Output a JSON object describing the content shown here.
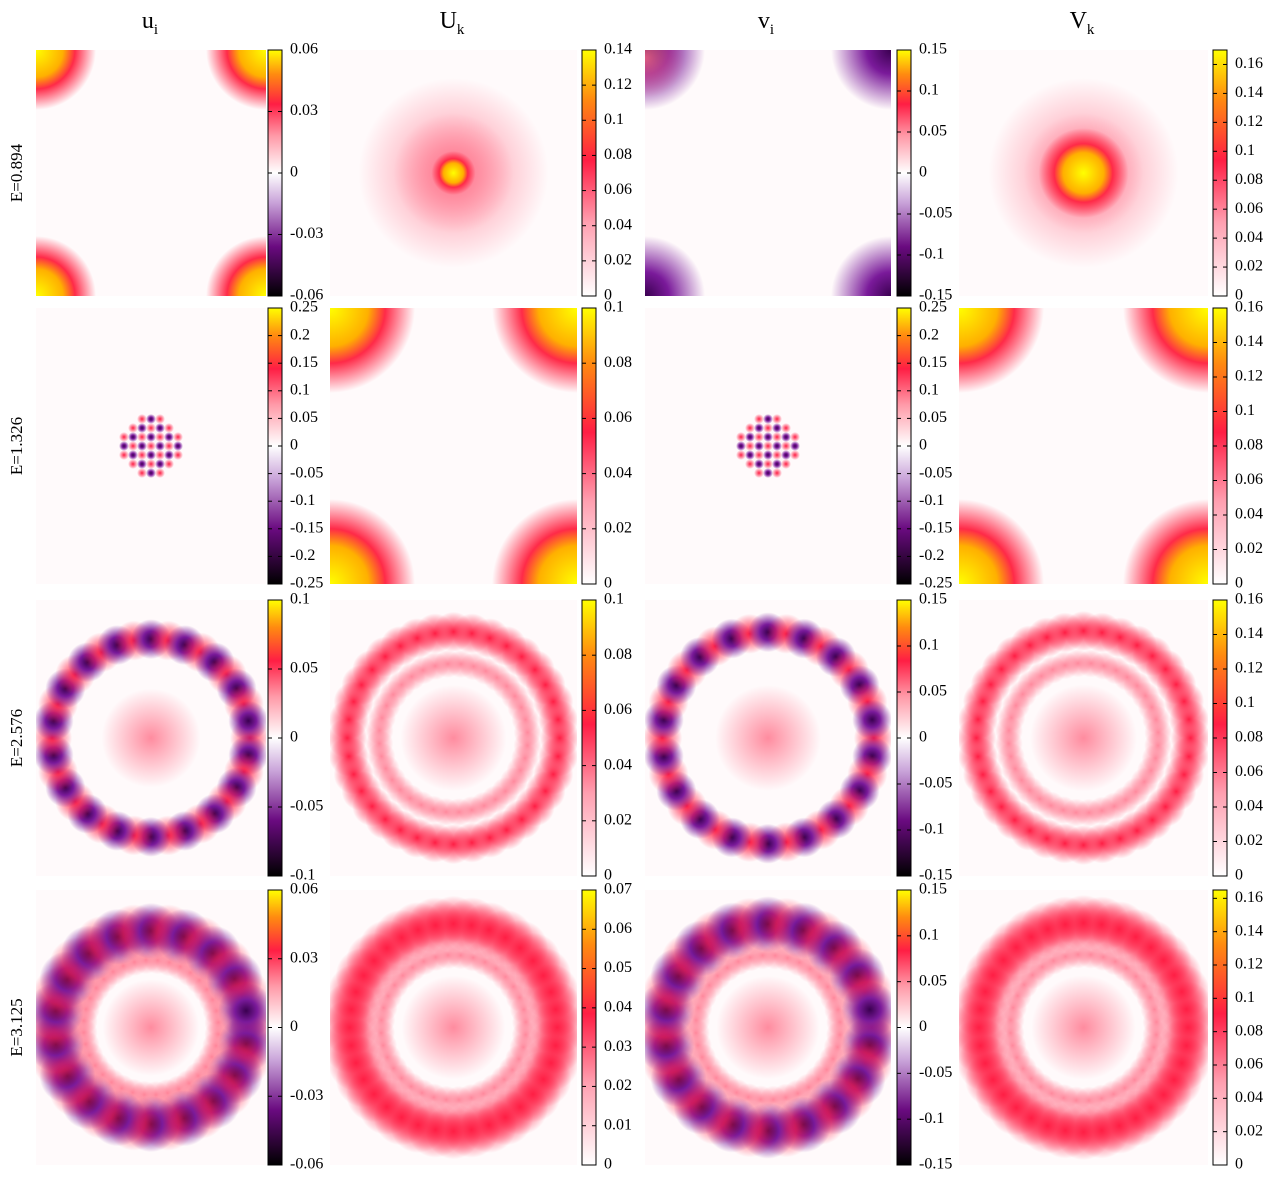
{
  "columns": [
    {
      "base": "u",
      "sub": "i"
    },
    {
      "base": "U",
      "sub": "k"
    },
    {
      "base": "v",
      "sub": "i"
    },
    {
      "base": "V",
      "sub": "k"
    }
  ],
  "rows": [
    "E=0.894",
    "E=1.326",
    "E=2.576",
    "E=3.125"
  ],
  "panels": [
    [
      {
        "type": "heatmap",
        "colormap": "diverging",
        "lim": [
          -0.06,
          0.06
        ],
        "ticks": [
          -0.06,
          -0.03,
          0,
          0.03,
          0.06
        ]
      },
      {
        "type": "heatmap",
        "colormap": "sequential",
        "lim": [
          0,
          0.14
        ],
        "ticks": [
          0,
          0.02,
          0.04,
          0.06,
          0.08,
          0.1,
          0.12,
          0.14
        ]
      },
      {
        "type": "heatmap",
        "colormap": "diverging",
        "lim": [
          -0.15,
          0.15
        ],
        "ticks": [
          -0.15,
          -0.1,
          -0.05,
          0,
          0.05,
          0.1,
          0.15
        ]
      },
      {
        "type": "heatmap",
        "colormap": "sequential",
        "lim": [
          0,
          0.17
        ],
        "ticks": [
          0,
          0.02,
          0.04,
          0.06,
          0.08,
          0.1,
          0.12,
          0.14,
          0.16
        ]
      }
    ],
    [
      {
        "type": "heatmap",
        "colormap": "diverging",
        "lim": [
          -0.25,
          0.25
        ],
        "ticks": [
          -0.25,
          -0.2,
          -0.15,
          -0.1,
          -0.05,
          0,
          0.05,
          0.1,
          0.15,
          0.2,
          0.25
        ]
      },
      {
        "type": "heatmap",
        "colormap": "sequential",
        "lim": [
          0,
          0.1
        ],
        "ticks": [
          0,
          0.02,
          0.04,
          0.06,
          0.08,
          0.1
        ]
      },
      {
        "type": "heatmap",
        "colormap": "diverging",
        "lim": [
          -0.25,
          0.25
        ],
        "ticks": [
          -0.25,
          -0.2,
          -0.15,
          -0.1,
          -0.05,
          0,
          0.05,
          0.1,
          0.15,
          0.2,
          0.25
        ]
      },
      {
        "type": "heatmap",
        "colormap": "sequential",
        "lim": [
          0,
          0.16
        ],
        "ticks": [
          0,
          0.02,
          0.04,
          0.06,
          0.08,
          0.1,
          0.12,
          0.14,
          0.16
        ]
      }
    ],
    [
      {
        "type": "heatmap",
        "colormap": "diverging",
        "lim": [
          -0.1,
          0.1
        ],
        "ticks": [
          -0.1,
          -0.05,
          0,
          0.05,
          0.1
        ]
      },
      {
        "type": "heatmap",
        "colormap": "sequential",
        "lim": [
          0,
          0.1
        ],
        "ticks": [
          0,
          0.02,
          0.04,
          0.06,
          0.08,
          0.1
        ]
      },
      {
        "type": "heatmap",
        "colormap": "diverging",
        "lim": [
          -0.15,
          0.15
        ],
        "ticks": [
          -0.15,
          -0.1,
          -0.05,
          0,
          0.05,
          0.1,
          0.15
        ]
      },
      {
        "type": "heatmap",
        "colormap": "sequential",
        "lim": [
          0,
          0.16
        ],
        "ticks": [
          0,
          0.02,
          0.04,
          0.06,
          0.08,
          0.1,
          0.12,
          0.14,
          0.16
        ]
      }
    ],
    [
      {
        "type": "heatmap",
        "colormap": "diverging",
        "lim": [
          -0.06,
          0.06
        ],
        "ticks": [
          -0.06,
          -0.03,
          0,
          0.03,
          0.06
        ]
      },
      {
        "type": "heatmap",
        "colormap": "sequential",
        "lim": [
          0,
          0.07
        ],
        "ticks": [
          0,
          0.01,
          0.02,
          0.03,
          0.04,
          0.05,
          0.06,
          0.07
        ]
      },
      {
        "type": "heatmap",
        "colormap": "diverging",
        "lim": [
          -0.15,
          0.15
        ],
        "ticks": [
          -0.15,
          -0.1,
          -0.05,
          0,
          0.05,
          0.1,
          0.15
        ]
      },
      {
        "type": "heatmap",
        "colormap": "sequential",
        "lim": [
          0,
          0.165
        ],
        "ticks": [
          0,
          0.02,
          0.04,
          0.06,
          0.08,
          0.1,
          0.12,
          0.14,
          0.16
        ]
      }
    ]
  ]
}
